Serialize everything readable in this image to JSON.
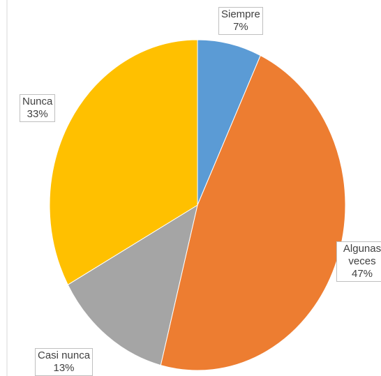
{
  "chart_data": {
    "type": "pie",
    "categories": [
      "Siempre",
      "Algunas veces",
      "Casi nunca",
      "Nunca"
    ],
    "values": [
      7,
      47,
      13,
      33
    ],
    "value_labels": [
      "7%",
      "47%",
      "13%",
      "33%"
    ],
    "colors": [
      "#5b9bd5",
      "#ed7d31",
      "#a5a5a5",
      "#ffc000"
    ]
  }
}
